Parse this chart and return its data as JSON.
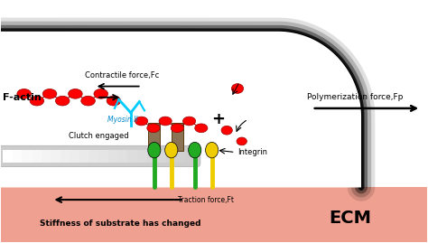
{
  "fig_width": 4.74,
  "fig_height": 2.69,
  "dpi": 100,
  "bg_color": "#ffffff",
  "ecm_color": "#f0a090",
  "ecm_label": "ECM",
  "ecm_stiffness_label": "Stiffness of substrate has changed",
  "traction_label": "Traction force,Ft",
  "factin_label": "F-actin",
  "contractile_label": "Contractile force,Fc",
  "polymerization_label": "Polymerization force,Fp",
  "myosin_label": "Myosin II",
  "clutch_label": "Clutch engaged",
  "integrin_label": "Integrin",
  "actin_color": "#ff0000",
  "actin_edge": "#990000",
  "myosin_color": "#00ccff",
  "talin_color": "#8B7355",
  "talin_edge": "#5a3a10",
  "green_integrin": "#22aa22",
  "yellow_integrin": "#eecc00",
  "cell_membrane_color": "#111111",
  "arrow_color": "#000000",
  "gray_bar_color": "#cccccc",
  "gray_bar_edge": "#aaaaaa"
}
